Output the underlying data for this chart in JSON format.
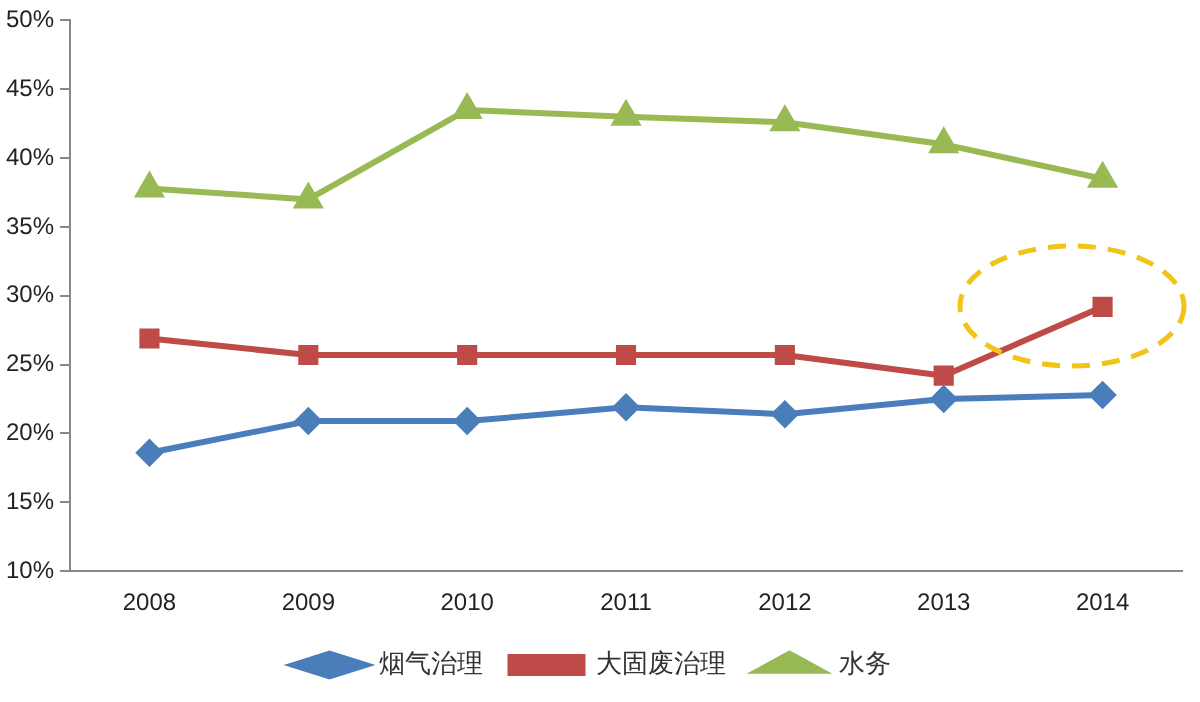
{
  "chart_data": {
    "type": "line",
    "categories": [
      "2008",
      "2009",
      "2010",
      "2011",
      "2012",
      "2013",
      "2014"
    ],
    "series": [
      {
        "name": "烟气治理",
        "color": "#4a7ebb",
        "marker": "diamond",
        "values": [
          18.6,
          20.9,
          20.9,
          21.9,
          21.4,
          22.5,
          22.8
        ]
      },
      {
        "name": "大固废治理",
        "color": "#be4b48",
        "marker": "square",
        "values": [
          26.9,
          25.7,
          25.7,
          25.7,
          25.7,
          24.2,
          29.2
        ]
      },
      {
        "name": "水务",
        "color": "#98b954",
        "marker": "triangle",
        "values": [
          37.8,
          37.0,
          43.5,
          43.0,
          42.6,
          41.0,
          38.5
        ]
      }
    ],
    "ylim": [
      10,
      50
    ],
    "yticks": [
      {
        "value": 10,
        "label": "10%"
      },
      {
        "value": 15,
        "label": "15%"
      },
      {
        "value": 20,
        "label": "20%"
      },
      {
        "value": 25,
        "label": "25%"
      },
      {
        "value": 30,
        "label": "30%"
      },
      {
        "value": 35,
        "label": "35%"
      },
      {
        "value": 40,
        "label": "40%"
      },
      {
        "value": 45,
        "label": "45%"
      },
      {
        "value": 50,
        "label": "50%"
      }
    ],
    "grid": false,
    "legend": "bottom"
  }
}
